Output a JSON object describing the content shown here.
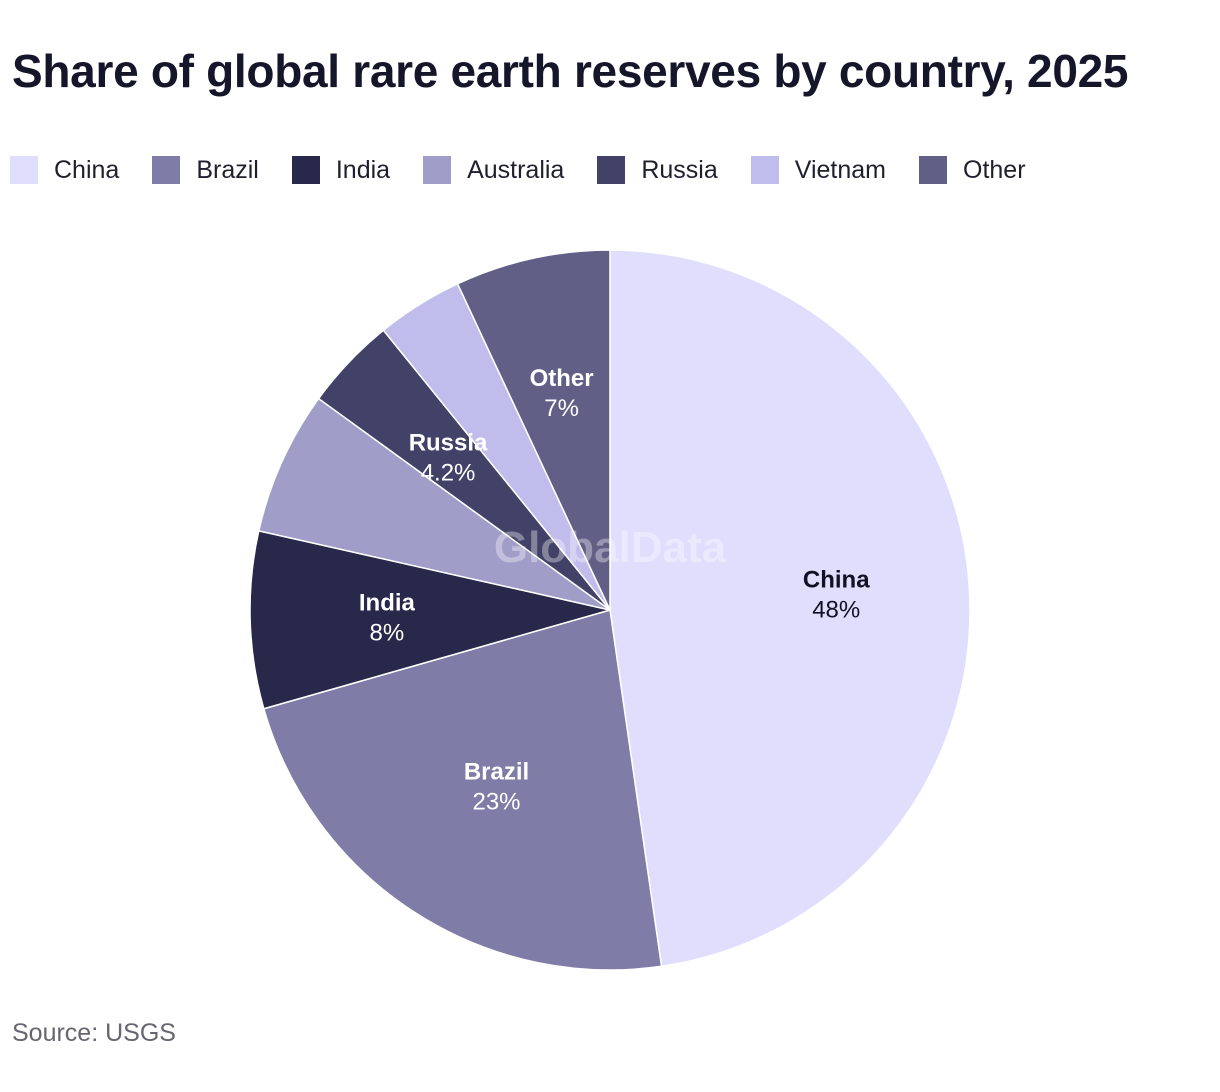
{
  "title": "Share of global rare earth reserves by country, 2025",
  "source": "Source: USGS",
  "watermark": "GlobalData",
  "chart_data": {
    "type": "pie",
    "title": "Share of global rare earth reserves by country, 2025",
    "legend_position": "top-left",
    "slices": [
      {
        "label": "China",
        "value": 48,
        "value_label": "48%",
        "color": "#e0ddfd",
        "text_color": "#111122",
        "show_label": true
      },
      {
        "label": "Brazil",
        "value": 23,
        "value_label": "23%",
        "color": "#7f7ca7",
        "text_color": "#ffffff",
        "show_label": true
      },
      {
        "label": "India",
        "value": 8,
        "value_label": "8%",
        "color": "#28284a",
        "text_color": "#ffffff",
        "show_label": true
      },
      {
        "label": "Australia",
        "value": 6.5,
        "value_label": "",
        "color": "#a09dc9",
        "text_color": "#ffffff",
        "show_label": false
      },
      {
        "label": "Russia",
        "value": 4.2,
        "value_label": "4.2%",
        "color": "#424268",
        "text_color": "#ffffff",
        "show_label": true
      },
      {
        "label": "Vietnam",
        "value": 3.9,
        "value_label": "",
        "color": "#c0bceb",
        "text_color": "#ffffff",
        "show_label": false
      },
      {
        "label": "Other",
        "value": 7,
        "value_label": "7%",
        "color": "#625f87",
        "text_color": "#ffffff",
        "show_label": true
      }
    ]
  }
}
